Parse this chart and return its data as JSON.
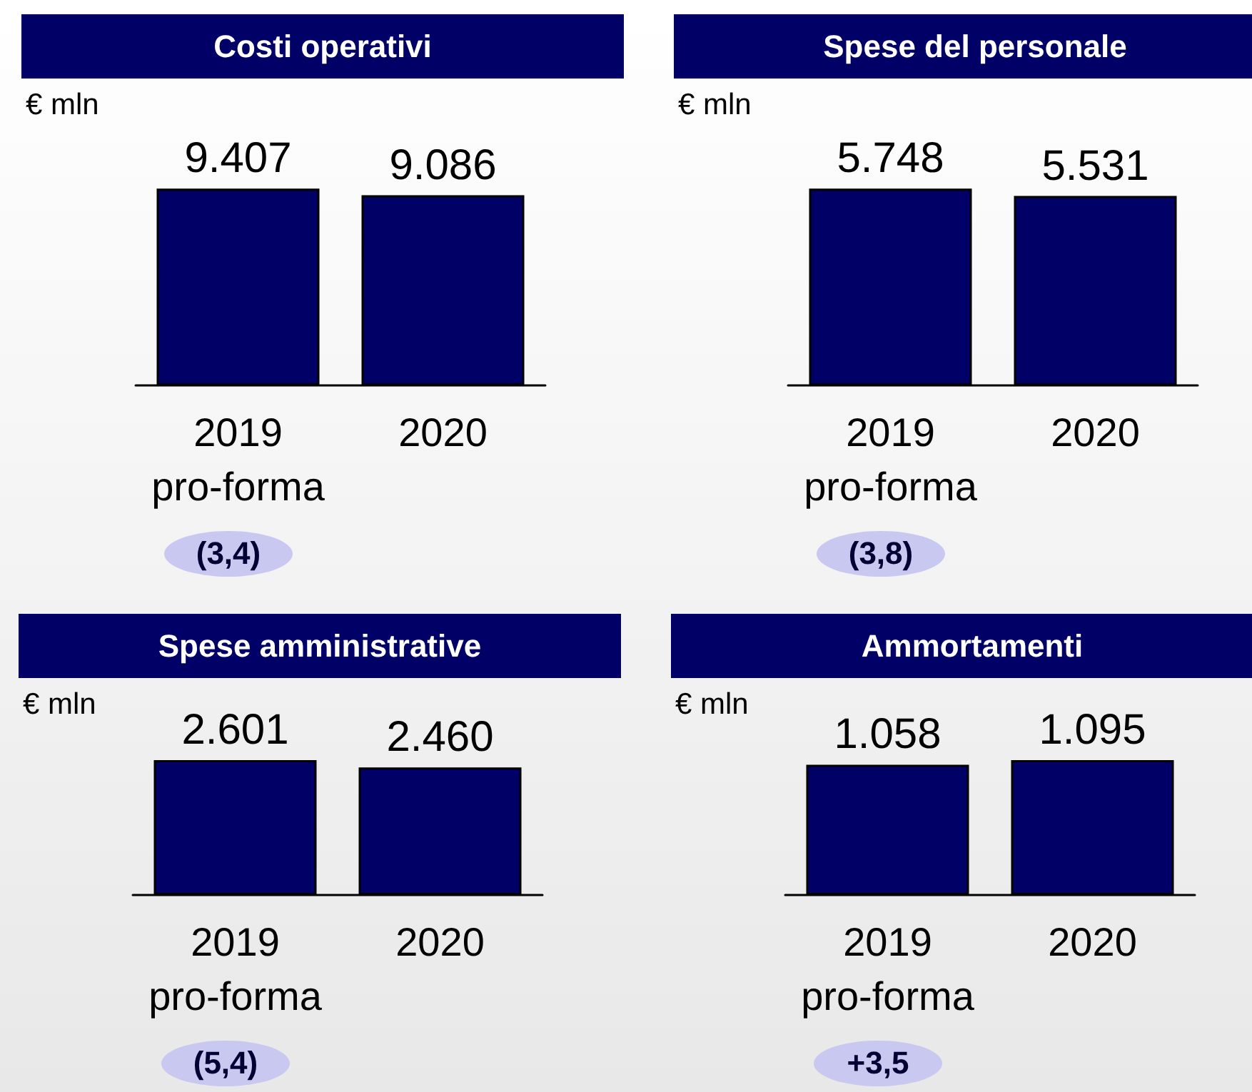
{
  "chart_data": [
    {
      "type": "bar",
      "title": "Costi operativi",
      "ylabel": "€ mln",
      "categories": [
        "2019\npro-forma",
        "2020"
      ],
      "values": [
        9407,
        9086
      ],
      "value_labels": [
        "9.407",
        "9.086"
      ],
      "color": "#000066",
      "annotations": [
        "(3,4)"
      ]
    },
    {
      "type": "bar",
      "title": "Spese del personale",
      "ylabel": "€ mln",
      "categories": [
        "2019\npro-forma",
        "2020"
      ],
      "values": [
        5748,
        5531
      ],
      "value_labels": [
        "5.748",
        "5.531"
      ],
      "color": "#000066",
      "annotations": [
        "(3,8)"
      ]
    },
    {
      "type": "bar",
      "title": "Spese amministrative",
      "ylabel": "€ mln",
      "categories": [
        "2019\npro-forma",
        "2020"
      ],
      "values": [
        2601,
        2460
      ],
      "value_labels": [
        "2.601",
        "2.460"
      ],
      "color": "#000066",
      "annotations": [
        "(5,4)"
      ]
    },
    {
      "type": "bar",
      "title": "Ammortamenti",
      "ylabel": "€ mln",
      "categories": [
        "2019\npro-forma",
        "2020"
      ],
      "values": [
        1058,
        1095
      ],
      "value_labels": [
        "1.058",
        "1.095"
      ],
      "color": "#000066",
      "annotations": [
        "+3,5"
      ]
    }
  ]
}
